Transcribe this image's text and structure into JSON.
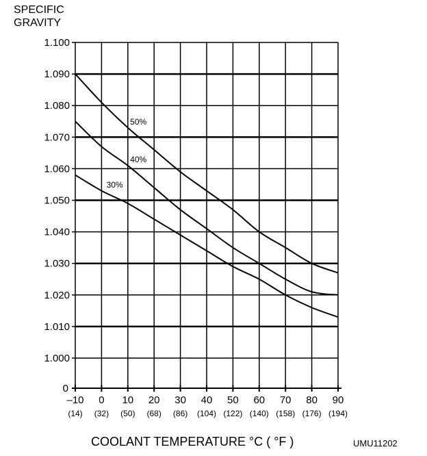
{
  "chart_data": {
    "type": "line",
    "title": "",
    "ylabel_lines": [
      "SPECIFIC",
      "GRAVITY"
    ],
    "xlabel": "COOLANT TEMPERATURE °C ( °F )",
    "figure_code": "UMU11202",
    "x": [
      -10,
      0,
      10,
      20,
      30,
      40,
      50,
      60,
      70,
      80,
      90
    ],
    "x_tick_labels": [
      "–10",
      "0",
      "10",
      "20",
      "30",
      "40",
      "50",
      "60",
      "70",
      "80",
      "90"
    ],
    "x_tick_sublabels": [
      "(14)",
      "(32)",
      "(50)",
      "(68)",
      "(86)",
      "(104)",
      "(122)",
      "(140)",
      "(158)",
      "(176)",
      "(194)"
    ],
    "y_ticks": [
      1.0,
      1.01,
      1.02,
      1.03,
      1.04,
      1.05,
      1.06,
      1.07,
      1.08,
      1.09,
      1.1
    ],
    "y_tick_labels": [
      "1.000",
      "1.010",
      "1.020",
      "1.030",
      "1.040",
      "1.050",
      "1.060",
      "1.070",
      "1.080",
      "1.090",
      "1.100"
    ],
    "y_zero_label": "0",
    "xlim": [
      -10,
      90
    ],
    "ylim": [
      1.0,
      1.1
    ],
    "grid": true,
    "series": [
      {
        "name": "50%",
        "values": [
          1.09,
          1.081,
          1.073,
          1.066,
          1.059,
          1.053,
          1.047,
          1.04,
          1.035,
          1.03,
          1.027
        ]
      },
      {
        "name": "40%",
        "values": [
          1.075,
          1.067,
          1.061,
          1.054,
          1.047,
          1.041,
          1.035,
          1.03,
          1.025,
          1.021,
          1.02
        ]
      },
      {
        "name": "30%",
        "values": [
          1.058,
          1.053,
          1.049,
          1.044,
          1.039,
          1.034,
          1.029,
          1.025,
          1.02,
          1.016,
          1.013
        ]
      }
    ],
    "series_label_positions_data": [
      {
        "name": "50%",
        "x": 14,
        "y": 1.074
      },
      {
        "name": "40%",
        "x": 14,
        "y": 1.062
      },
      {
        "name": "30%",
        "x": 5,
        "y": 1.054
      }
    ]
  }
}
